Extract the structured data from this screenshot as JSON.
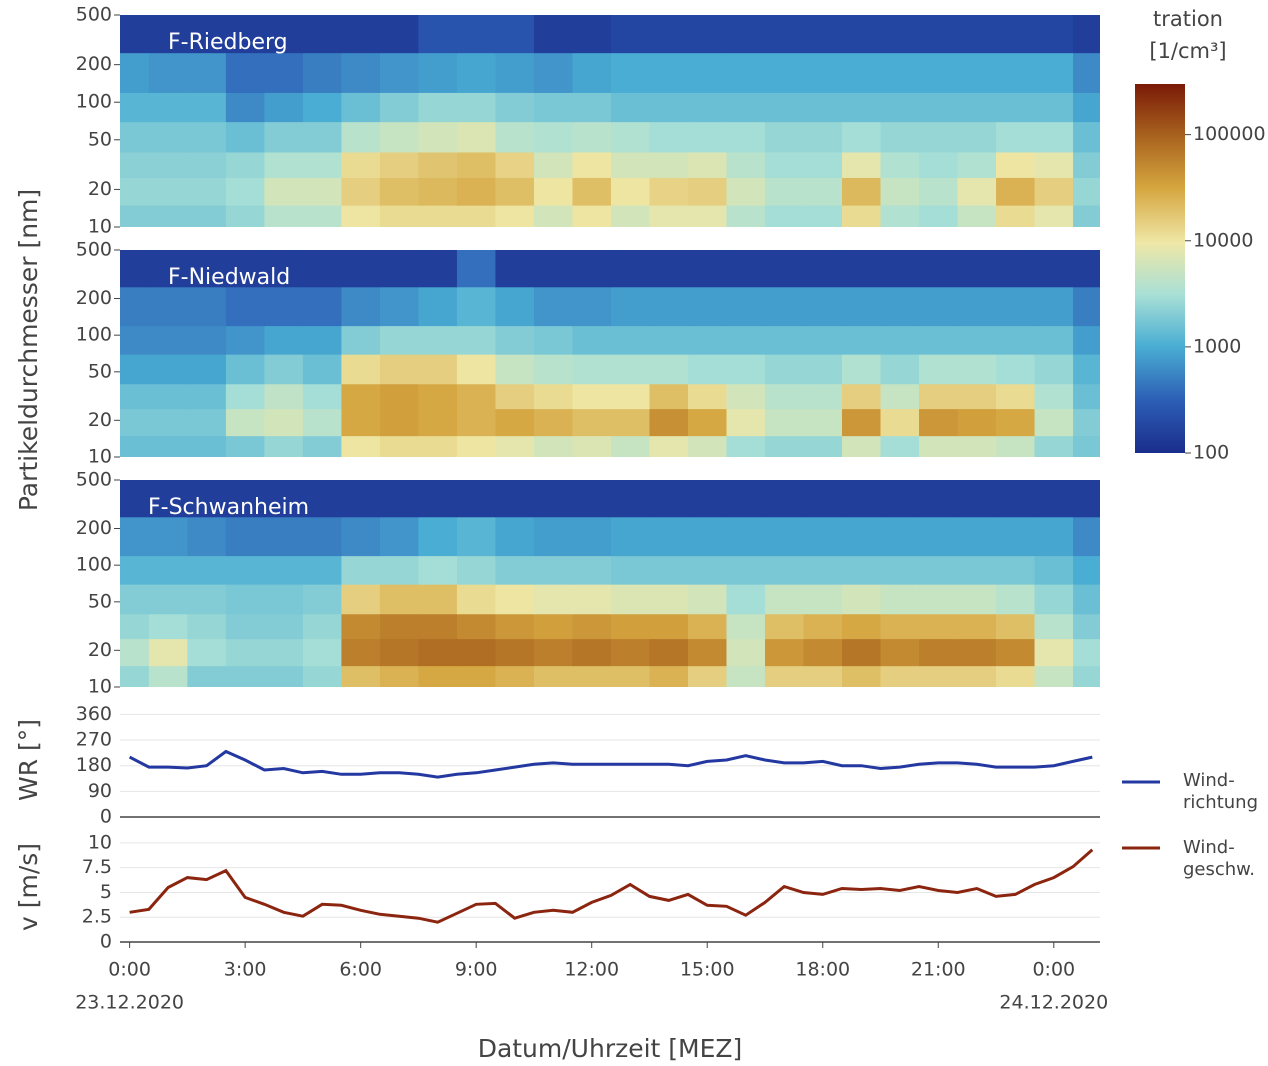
{
  "chart_data": [
    {
      "type": "heatmap",
      "title": "F-Riedberg",
      "ylabel": "Partikeldurchmesser [nm]",
      "xbins": [
        -0.5,
        0.5,
        1.5,
        2.5,
        3.5,
        4.5,
        5.5,
        6.5,
        7.5,
        8.5,
        9.5,
        10.5,
        11.5,
        12.5,
        13.5,
        14.5,
        15.5,
        16.5,
        17.5,
        18.5,
        19.5,
        20.5,
        21.5,
        22.5,
        23.5,
        24.5,
        25.5
      ],
      "ybins": [
        10,
        15,
        25,
        40,
        70,
        120,
        250,
        500
      ],
      "z": [
        [
          2000,
          2000,
          2000,
          2500,
          4000,
          4000,
          10000,
          12000,
          12000,
          12000,
          10000,
          6000,
          10000,
          6000,
          8000,
          8000,
          4000,
          3000,
          3000,
          12000,
          3500,
          3000,
          5000,
          12000,
          8000,
          2000
        ],
        [
          2500,
          2500,
          2500,
          3000,
          6000,
          6000,
          15000,
          20000,
          22000,
          25000,
          20000,
          10000,
          20000,
          10000,
          14000,
          15000,
          6000,
          4000,
          4000,
          22000,
          5000,
          4000,
          8000,
          25000,
          15000,
          2500
        ],
        [
          2200,
          2200,
          2200,
          2500,
          3500,
          3500,
          12000,
          15000,
          18000,
          20000,
          14000,
          6000,
          10000,
          6000,
          6000,
          7000,
          4000,
          3000,
          3000,
          8000,
          3500,
          3000,
          3500,
          10000,
          8000,
          2000
        ],
        [
          1800,
          1800,
          1800,
          1500,
          2000,
          2000,
          4000,
          5000,
          6000,
          7000,
          4000,
          3500,
          4000,
          3500,
          3000,
          3000,
          3000,
          2500,
          2500,
          3000,
          2500,
          2500,
          2500,
          3000,
          3000,
          1500
        ],
        [
          1200,
          1200,
          1200,
          600,
          800,
          1000,
          1500,
          2000,
          2500,
          2500,
          2000,
          1800,
          1800,
          1500,
          1500,
          1500,
          1500,
          1500,
          1500,
          1500,
          1500,
          1500,
          1500,
          1500,
          1500,
          900
        ],
        [
          800,
          700,
          700,
          400,
          400,
          500,
          600,
          700,
          800,
          900,
          800,
          700,
          900,
          1000,
          1000,
          1000,
          1000,
          1000,
          1000,
          1000,
          1000,
          1000,
          1000,
          1000,
          1000,
          600
        ],
        [
          150,
          150,
          150,
          150,
          150,
          150,
          150,
          150,
          250,
          250,
          250,
          150,
          150,
          180,
          180,
          180,
          180,
          180,
          180,
          180,
          180,
          180,
          180,
          180,
          180,
          150
        ]
      ],
      "xlim": [
        -0.25,
        25.2
      ],
      "ylim": [
        10,
        500
      ],
      "ylog": true,
      "yticks": [
        10,
        20,
        50,
        100,
        200,
        500
      ],
      "colorbar": {
        "title": [
          "tration",
          "[1/cm³]"
        ],
        "zlim": [
          100,
          300000
        ],
        "log": true,
        "ticks": [
          100,
          1000,
          10000,
          100000
        ],
        "colorscale": [
          [
            0,
            "#1a2d8c"
          ],
          [
            0.14,
            "#2c5db5"
          ],
          [
            0.29,
            "#4aaed3"
          ],
          [
            0.43,
            "#a9e0d6"
          ],
          [
            0.57,
            "#efe7a6"
          ],
          [
            0.72,
            "#d5a53e"
          ],
          [
            0.86,
            "#a8621e"
          ],
          [
            1,
            "#7a1a08"
          ]
        ]
      }
    },
    {
      "type": "heatmap",
      "title": "F-Niedwald",
      "xbins": [
        -0.5,
        0.5,
        1.5,
        2.5,
        3.5,
        4.5,
        5.5,
        6.5,
        7.5,
        8.5,
        9.5,
        10.5,
        11.5,
        12.5,
        13.5,
        14.5,
        15.5,
        16.5,
        17.5,
        18.5,
        19.5,
        20.5,
        21.5,
        22.5,
        23.5,
        24.5,
        25.5
      ],
      "ybins": [
        10,
        15,
        25,
        40,
        70,
        120,
        250,
        500
      ],
      "z": [
        [
          1500,
          1500,
          1500,
          1800,
          2500,
          2000,
          10000,
          12000,
          12000,
          10000,
          8000,
          6000,
          7000,
          5000,
          8000,
          6000,
          3000,
          2500,
          2500,
          6000,
          3000,
          6000,
          6000,
          5000,
          2500,
          1800
        ],
        [
          1800,
          1800,
          1800,
          5000,
          6000,
          4000,
          30000,
          35000,
          30000,
          25000,
          30000,
          25000,
          20000,
          20000,
          45000,
          30000,
          8000,
          5000,
          5000,
          40000,
          12000,
          40000,
          35000,
          30000,
          5000,
          2000
        ],
        [
          1500,
          1500,
          1500,
          3000,
          4500,
          3000,
          30000,
          35000,
          30000,
          25000,
          15000,
          12000,
          10000,
          10000,
          20000,
          12000,
          6000,
          4000,
          4000,
          15000,
          5000,
          15000,
          15000,
          12000,
          3500,
          1500
        ],
        [
          900,
          900,
          900,
          1500,
          2000,
          1500,
          12000,
          15000,
          15000,
          10000,
          5000,
          4000,
          3500,
          3500,
          3500,
          3000,
          3000,
          2500,
          2500,
          3500,
          2500,
          3500,
          3500,
          3000,
          2500,
          1200
        ],
        [
          600,
          600,
          600,
          700,
          900,
          900,
          2000,
          2500,
          2500,
          2500,
          2000,
          1800,
          1500,
          1500,
          1500,
          1500,
          1500,
          1500,
          1500,
          1500,
          1500,
          1500,
          1500,
          1500,
          1500,
          800
        ],
        [
          500,
          500,
          500,
          400,
          400,
          400,
          600,
          700,
          900,
          1200,
          900,
          700,
          700,
          800,
          800,
          800,
          800,
          800,
          800,
          800,
          800,
          800,
          800,
          800,
          800,
          500
        ],
        [
          150,
          150,
          150,
          150,
          150,
          150,
          150,
          150,
          150,
          400,
          150,
          150,
          150,
          150,
          150,
          150,
          150,
          150,
          150,
          150,
          150,
          150,
          150,
          150,
          150,
          150
        ]
      ],
      "xlim": [
        -0.25,
        25.2
      ],
      "ylim": [
        10,
        500
      ],
      "ylog": true,
      "yticks": [
        10,
        20,
        50,
        100,
        200,
        500
      ]
    },
    {
      "type": "heatmap",
      "title": "F-Schwanheim",
      "xbins": [
        -0.5,
        0.5,
        1.5,
        2.5,
        3.5,
        4.5,
        5.5,
        6.5,
        7.5,
        8.5,
        9.5,
        10.5,
        11.5,
        12.5,
        13.5,
        14.5,
        15.5,
        16.5,
        17.5,
        18.5,
        19.5,
        20.5,
        21.5,
        22.5,
        23.5,
        24.5,
        25.5
      ],
      "ybins": [
        10,
        15,
        25,
        40,
        70,
        120,
        250,
        500
      ],
      "z": [
        [
          2500,
          4000,
          2000,
          2000,
          2000,
          2500,
          20000,
          25000,
          30000,
          30000,
          25000,
          20000,
          20000,
          20000,
          25000,
          15000,
          5000,
          15000,
          15000,
          20000,
          15000,
          15000,
          15000,
          12000,
          5000,
          2500
        ],
        [
          4000,
          8000,
          3000,
          2500,
          2500,
          3000,
          60000,
          70000,
          80000,
          80000,
          70000,
          60000,
          70000,
          60000,
          70000,
          50000,
          6000,
          40000,
          50000,
          70000,
          50000,
          60000,
          60000,
          50000,
          8000,
          3000
        ],
        [
          2500,
          3000,
          2500,
          2000,
          2000,
          2500,
          50000,
          60000,
          60000,
          50000,
          40000,
          35000,
          40000,
          35000,
          35000,
          25000,
          5000,
          20000,
          25000,
          30000,
          25000,
          25000,
          25000,
          20000,
          4000,
          2000
        ],
        [
          2000,
          2000,
          2000,
          1800,
          1800,
          2000,
          15000,
          20000,
          20000,
          12000,
          10000,
          8000,
          8000,
          7000,
          7000,
          6000,
          3000,
          5000,
          5000,
          6000,
          5000,
          5000,
          5000,
          4000,
          2500,
          1500
        ],
        [
          1200,
          1200,
          1200,
          1200,
          1200,
          1200,
          2500,
          2500,
          3000,
          2500,
          2000,
          2000,
          2000,
          1800,
          1800,
          1800,
          1800,
          1800,
          1800,
          1800,
          1800,
          1800,
          1800,
          1800,
          1500,
          1000
        ],
        [
          700,
          700,
          600,
          500,
          500,
          500,
          600,
          700,
          1000,
          1200,
          900,
          800,
          800,
          900,
          900,
          900,
          900,
          900,
          900,
          900,
          900,
          900,
          900,
          900,
          900,
          600
        ],
        [
          150,
          150,
          150,
          150,
          150,
          150,
          150,
          150,
          150,
          150,
          150,
          150,
          150,
          150,
          150,
          150,
          150,
          150,
          150,
          150,
          150,
          150,
          150,
          150,
          150,
          150
        ]
      ],
      "xlim": [
        -0.25,
        25.2
      ],
      "ylim": [
        10,
        500
      ],
      "ylog": true,
      "yticks": [
        10,
        20,
        50,
        100,
        200,
        500
      ]
    },
    {
      "type": "line",
      "ylabel": "WR [°]",
      "x": [
        0,
        0.5,
        1,
        1.5,
        2,
        2.5,
        3,
        3.5,
        4,
        4.5,
        5,
        5.5,
        6,
        6.5,
        7,
        7.5,
        8,
        8.5,
        9,
        9.5,
        10,
        10.5,
        11,
        11.5,
        12,
        12.5,
        13,
        13.5,
        14,
        14.5,
        15,
        15.5,
        16,
        16.5,
        17,
        17.5,
        18,
        18.5,
        19,
        19.5,
        20,
        20.5,
        21,
        21.5,
        22,
        22.5,
        23,
        23.5,
        24,
        24.5,
        25
      ],
      "series": [
        {
          "name": "Wind-\nrichtung",
          "color": "#2338a0",
          "values": [
            210,
            175,
            175,
            172,
            180,
            230,
            200,
            165,
            170,
            155,
            160,
            150,
            150,
            155,
            155,
            150,
            140,
            150,
            155,
            165,
            175,
            185,
            190,
            185,
            185,
            185,
            185,
            185,
            185,
            180,
            195,
            200,
            215,
            200,
            190,
            190,
            195,
            180,
            180,
            170,
            175,
            185,
            190,
            190,
            185,
            175,
            175,
            175,
            180,
            195,
            210
          ]
        }
      ],
      "xlim": [
        -0.25,
        25.2
      ],
      "ylim": [
        0,
        400
      ],
      "yticks": [
        0,
        90,
        180,
        270,
        360
      ],
      "grid": true,
      "legend": "right"
    },
    {
      "type": "line",
      "ylabel": "v [m/s]",
      "xlabel": "Datum/Uhrzeit [MEZ]",
      "x": [
        0,
        0.5,
        1,
        1.5,
        2,
        2.5,
        3,
        3.5,
        4,
        4.5,
        5,
        5.5,
        6,
        6.5,
        7,
        7.5,
        8,
        8.5,
        9,
        9.5,
        10,
        10.5,
        11,
        11.5,
        12,
        12.5,
        13,
        13.5,
        14,
        14.5,
        15,
        15.5,
        16,
        16.5,
        17,
        17.5,
        18,
        18.5,
        19,
        19.5,
        20,
        20.5,
        21,
        21.5,
        22,
        22.5,
        23,
        23.5,
        24,
        24.5,
        25
      ],
      "series": [
        {
          "name": "Wind-\ngeschw.",
          "color": "#8b2510",
          "values": [
            3.0,
            3.3,
            5.5,
            6.5,
            6.3,
            7.2,
            4.5,
            3.8,
            3.0,
            2.6,
            3.8,
            3.7,
            3.2,
            2.8,
            2.6,
            2.4,
            2.0,
            2.9,
            3.8,
            3.9,
            2.4,
            3.0,
            3.2,
            3.0,
            4.0,
            4.7,
            5.8,
            4.6,
            4.2,
            4.8,
            3.7,
            3.6,
            2.7,
            4.0,
            5.6,
            5.0,
            4.8,
            5.4,
            5.3,
            5.4,
            5.2,
            5.6,
            5.2,
            5.0,
            5.4,
            4.6,
            4.8,
            5.8,
            6.5,
            7.6,
            9.3
          ]
        }
      ],
      "xlim": [
        -0.25,
        25.2
      ],
      "ylim": [
        0,
        11.1
      ],
      "yticks": [
        0,
        2.5,
        5,
        7.5,
        10
      ],
      "grid": true,
      "legend": "right",
      "xticks": [
        {
          "value": 0,
          "label": "0:00"
        },
        {
          "value": 3,
          "label": "3:00"
        },
        {
          "value": 6,
          "label": "6:00"
        },
        {
          "value": 9,
          "label": "9:00"
        },
        {
          "value": 12,
          "label": "12:00"
        },
        {
          "value": 15,
          "label": "15:00"
        },
        {
          "value": 18,
          "label": "18:00"
        },
        {
          "value": 21,
          "label": "21:00"
        },
        {
          "value": 24,
          "label": "0:00"
        }
      ],
      "date_labels": [
        {
          "value": 0,
          "label": "23.12.2020"
        },
        {
          "value": 24,
          "label": "24.12.2020"
        }
      ]
    }
  ]
}
